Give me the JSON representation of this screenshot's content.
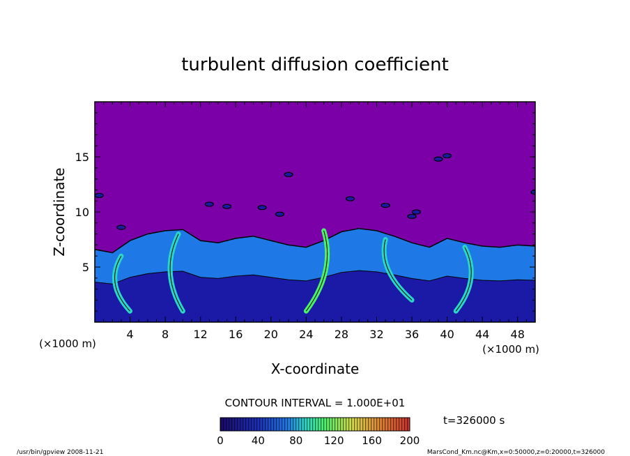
{
  "chart_data": {
    "type": "heatmap",
    "title": "turbulent diffusion coefficient",
    "xlabel": "X-coordinate",
    "ylabel": "Z-coordinate",
    "x_unit": "(×1000 m)",
    "z_unit": "(×1000 m)",
    "xlim": [
      0,
      50
    ],
    "ylim": [
      0,
      20
    ],
    "x_ticks": [
      4,
      8,
      12,
      16,
      20,
      24,
      28,
      32,
      36,
      40,
      44,
      48
    ],
    "y_ticks": [
      5,
      10,
      15
    ],
    "contour_interval": "CONTOUR INTERVAL = 1.000E+01",
    "time_label": "t=326000 s",
    "colorbar": {
      "min": 0,
      "max": 200,
      "ticks": [
        0,
        40,
        80,
        120,
        160,
        200
      ]
    },
    "boundary_layer_top": [
      [
        0,
        6.6
      ],
      [
        2,
        6.3
      ],
      [
        4,
        7.4
      ],
      [
        6,
        8.0
      ],
      [
        8,
        8.3
      ],
      [
        10,
        8.4
      ],
      [
        12,
        7.4
      ],
      [
        14,
        7.2
      ],
      [
        16,
        7.6
      ],
      [
        18,
        7.8
      ],
      [
        20,
        7.4
      ],
      [
        22,
        7.0
      ],
      [
        24,
        6.8
      ],
      [
        26,
        7.4
      ],
      [
        28,
        8.2
      ],
      [
        30,
        8.5
      ],
      [
        32,
        8.3
      ],
      [
        34,
        7.8
      ],
      [
        36,
        7.2
      ],
      [
        38,
        6.8
      ],
      [
        40,
        7.6
      ],
      [
        42,
        7.2
      ],
      [
        44,
        6.9
      ],
      [
        46,
        6.8
      ],
      [
        48,
        7.0
      ],
      [
        50,
        6.9
      ]
    ],
    "colors": {
      "background": "#7b00a8",
      "low": "#1a1aa6",
      "mid": "#1e78e6",
      "high": "#2ad6c8",
      "peak": "#4cf06a"
    }
  },
  "footer": {
    "left": "/usr/bin/gpview  2008-11-21",
    "right": "MarsCond_Km.nc@Km,x=0:50000,z=0:20000,t=326000"
  }
}
